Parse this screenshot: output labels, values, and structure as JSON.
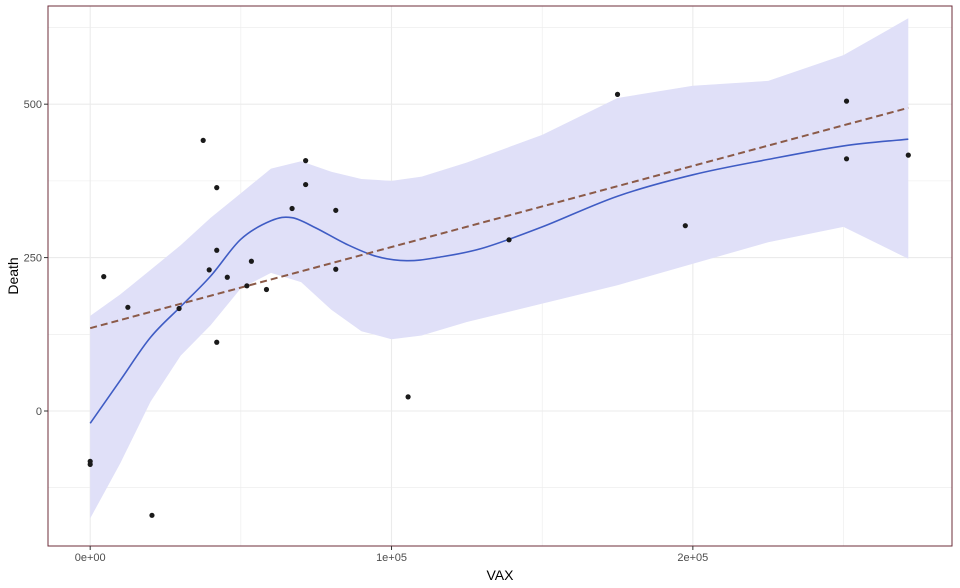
{
  "chart_data": {
    "type": "scatter",
    "title": "",
    "xlabel": "VAX",
    "ylabel": "Death",
    "xlim": [
      -14000,
      286000
    ],
    "ylim": [
      -220,
      660
    ],
    "x_ticks": {
      "major": [
        0,
        100000,
        200000
      ],
      "major_labels": [
        "0e+00",
        "1e+05",
        "2e+05"
      ],
      "minor": [
        50000,
        150000,
        250000
      ]
    },
    "y_ticks": {
      "major": [
        0,
        250,
        500
      ],
      "major_labels": [
        "0",
        "250",
        "500"
      ],
      "minor": [
        -125,
        125,
        375,
        625
      ]
    },
    "grid": true,
    "points": [
      {
        "x": 0,
        "y": -82
      },
      {
        "x": 0,
        "y": -87
      },
      {
        "x": 4500,
        "y": 219
      },
      {
        "x": 12500,
        "y": 169
      },
      {
        "x": 20500,
        "y": -170
      },
      {
        "x": 29500,
        "y": 167
      },
      {
        "x": 37500,
        "y": 441
      },
      {
        "x": 39500,
        "y": 230
      },
      {
        "x": 42000,
        "y": 364
      },
      {
        "x": 42000,
        "y": 262
      },
      {
        "x": 42000,
        "y": 112
      },
      {
        "x": 45500,
        "y": 218
      },
      {
        "x": 52000,
        "y": 204
      },
      {
        "x": 53500,
        "y": 244
      },
      {
        "x": 58500,
        "y": 198
      },
      {
        "x": 67000,
        "y": 330
      },
      {
        "x": 71500,
        "y": 408
      },
      {
        "x": 71500,
        "y": 369
      },
      {
        "x": 81500,
        "y": 327
      },
      {
        "x": 81500,
        "y": 231
      },
      {
        "x": 105500,
        "y": 23
      },
      {
        "x": 139000,
        "y": 279
      },
      {
        "x": 175000,
        "y": 516
      },
      {
        "x": 197500,
        "y": 302
      },
      {
        "x": 251000,
        "y": 505
      },
      {
        "x": 251000,
        "y": 411
      },
      {
        "x": 271500,
        "y": 417
      }
    ],
    "smooth_line": {
      "color": "#3f5cc4",
      "x": [
        0,
        10000,
        20000,
        30000,
        40000,
        50000,
        60000,
        67000,
        75000,
        85000,
        95000,
        105000,
        115000,
        130000,
        150000,
        175000,
        200000,
        225000,
        250000,
        271500
      ],
      "y": [
        -20,
        50,
        120,
        170,
        220,
        280,
        310,
        315,
        298,
        272,
        252,
        245,
        250,
        265,
        300,
        350,
        385,
        410,
        432,
        443
      ]
    },
    "confidence_band": {
      "color": "#e0e0f8",
      "x": [
        0,
        10000,
        20000,
        30000,
        40000,
        50000,
        60000,
        70000,
        80000,
        90000,
        100000,
        110000,
        125000,
        150000,
        175000,
        200000,
        225000,
        250000,
        271500
      ],
      "upper": [
        155,
        190,
        230,
        270,
        315,
        355,
        395,
        407,
        390,
        378,
        375,
        382,
        405,
        450,
        510,
        530,
        538,
        580,
        640
      ],
      "lower": [
        -175,
        -85,
        15,
        90,
        140,
        200,
        225,
        210,
        165,
        130,
        117,
        123,
        145,
        175,
        205,
        240,
        275,
        300,
        248
      ]
    },
    "fit_line": {
      "color": "#8b5a48",
      "style": "dashed",
      "x": [
        0,
        271500
      ],
      "y": [
        135,
        494
      ]
    },
    "colors": {
      "points": "#1a1a1a",
      "grid": "#ebebeb",
      "panel_border": "#6e2c3a"
    }
  }
}
